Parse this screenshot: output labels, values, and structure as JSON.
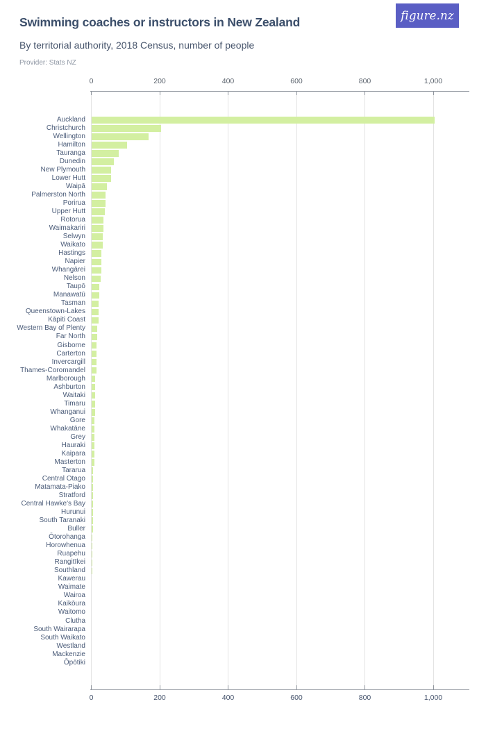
{
  "header": {
    "title": "Swimming coaches or instructors in New Zealand",
    "subtitle": "By territorial authority, 2018 Census, number of people",
    "provider": "Provider: Stats NZ",
    "logo_text": "figure.nz"
  },
  "colors": {
    "bar": "#d3efa1",
    "logo_bg": "#5a5ec4",
    "gridline": "#e3e3e3",
    "axis": "#8f959d",
    "title_text": "#3b4e6a",
    "row_label_text": "#4a5b78"
  },
  "chart_data": {
    "type": "bar",
    "orientation": "horizontal",
    "title": "Swimming coaches or instructors in New Zealand",
    "subtitle": "By territorial authority, 2018 Census, number of people",
    "provider": "Provider: Stats NZ",
    "xlabel": "number of people",
    "ylabel": "territorial authority",
    "xlim": [
      0,
      1105
    ],
    "grid": true,
    "x_ticks": [
      {
        "value": 0,
        "label": "0"
      },
      {
        "value": 200,
        "label": "200"
      },
      {
        "value": 400,
        "label": "400"
      },
      {
        "value": 600,
        "label": "600"
      },
      {
        "value": 800,
        "label": "800"
      },
      {
        "value": 1000,
        "label": "1,000"
      }
    ],
    "categories": [
      "Auckland",
      "Christchurch",
      "Wellington",
      "Hamilton",
      "Tauranga",
      "Dunedin",
      "New Plymouth",
      "Lower Hutt",
      "Waipā",
      "Palmerston North",
      "Porirua",
      "Upper Hutt",
      "Rotorua",
      "Waimakariri",
      "Selwyn",
      "Waikato",
      "Hastings",
      "Napier",
      "Whangārei",
      "Nelson",
      "Taupō",
      "Manawatū",
      "Tasman",
      "Queenstown-Lakes",
      "Kāpiti Coast",
      "Western Bay of Plenty",
      "Far North",
      "Gisborne",
      "Carterton",
      "Invercargill",
      "Thames-Coromandel",
      "Marlborough",
      "Ashburton",
      "Waitaki",
      "Timaru",
      "Whanganui",
      "Gore",
      "Whakatāne",
      "Grey",
      "Hauraki",
      "Kaipara",
      "Masterton",
      "Tararua",
      "Central Otago",
      "Matamata-Piako",
      "Stratford",
      "Central Hawke's Bay",
      "Hurunui",
      "South Taranaki",
      "Buller",
      "Ōtorohanga",
      "Horowhenua",
      "Ruapehu",
      "Rangitīkei",
      "Southland",
      "Kawerau",
      "Waimate",
      "Wairoa",
      "Kaikōura",
      "Waitomo",
      "Clutha",
      "South Wairarapa",
      "South Waikato",
      "Westland",
      "Mackenzie",
      "Ōpōtiki"
    ],
    "values": [
      1005,
      204,
      168,
      105,
      81,
      66,
      57,
      57,
      45,
      42,
      42,
      39,
      36,
      36,
      33,
      33,
      30,
      30,
      30,
      27,
      24,
      24,
      21,
      21,
      21,
      18,
      18,
      15,
      15,
      15,
      15,
      12,
      12,
      12,
      12,
      12,
      9,
      9,
      9,
      9,
      9,
      9,
      6,
      6,
      6,
      6,
      6,
      6,
      6,
      6,
      3,
      3,
      3,
      3,
      3,
      0,
      0,
      0,
      0,
      0,
      0,
      0,
      0,
      0,
      0,
      0
    ]
  }
}
